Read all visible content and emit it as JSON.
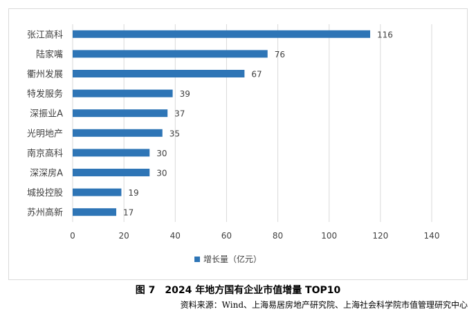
{
  "chart_data": {
    "type": "bar",
    "orientation": "horizontal",
    "categories": [
      "张江高科",
      "陆家嘴",
      "衢州发展",
      "特发服务",
      "深振业A",
      "光明地产",
      "南京高科",
      "深深房A",
      "城投控股",
      "苏州高新"
    ],
    "values": [
      116,
      76,
      67,
      39,
      37,
      35,
      30,
      30,
      19,
      17
    ],
    "series": [
      {
        "name": "增长量（亿元）",
        "color": "#2e75b6",
        "values": [
          116,
          76,
          67,
          39,
          37,
          35,
          30,
          30,
          19,
          17
        ]
      }
    ],
    "xlim": [
      0,
      140
    ],
    "xticks": [
      0,
      20,
      40,
      60,
      80,
      100,
      120,
      140
    ],
    "grid": "vertical",
    "legend": "bottom"
  },
  "caption": "图 7　2024 年地方国有企业市值增量 TOP10",
  "source": "资料来源：Wind、上海易居房地产研究院、上海社会科学院市值管理研究中心"
}
